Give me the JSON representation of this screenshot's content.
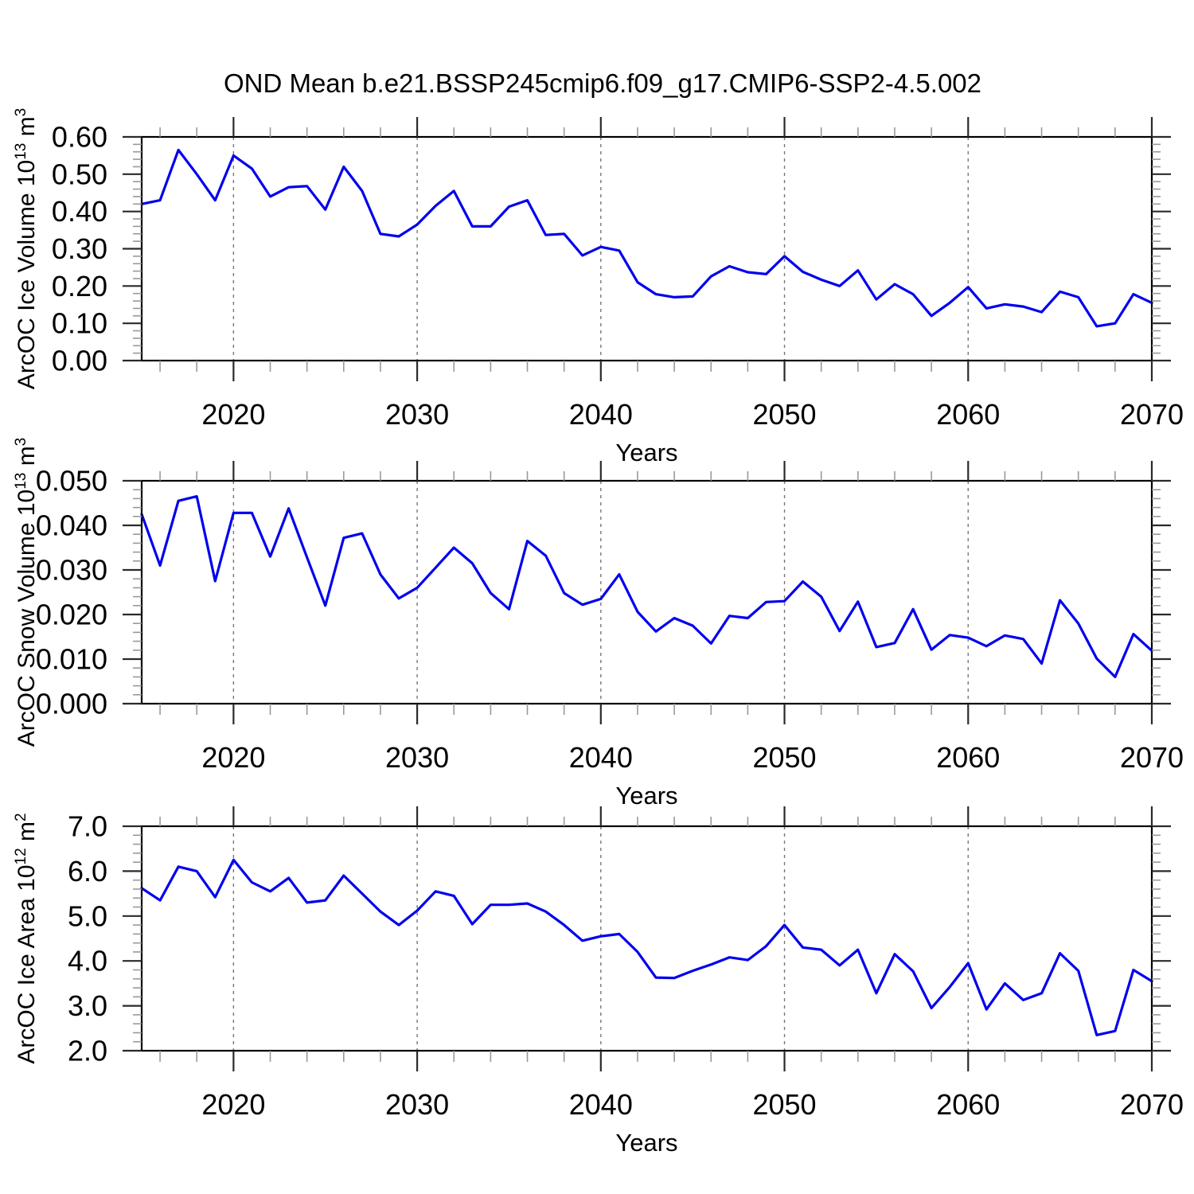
{
  "title": "OND Mean b.e21.BSSP245cmip6.f09_g17.CMIP6-SSP2-4.5.002",
  "colors": {
    "line": "#0000EE",
    "axis": "#000000",
    "major_tick": "#2a2a2a",
    "minor_tick": "#999999",
    "gridline": "#777777",
    "background": "#ffffff"
  },
  "years": [
    2015,
    2016,
    2017,
    2018,
    2019,
    2020,
    2021,
    2022,
    2023,
    2024,
    2025,
    2026,
    2027,
    2028,
    2029,
    2030,
    2031,
    2032,
    2033,
    2034,
    2035,
    2036,
    2037,
    2038,
    2039,
    2040,
    2041,
    2042,
    2043,
    2044,
    2045,
    2046,
    2047,
    2048,
    2049,
    2050,
    2051,
    2052,
    2053,
    2054,
    2055,
    2056,
    2057,
    2058,
    2059,
    2060,
    2061,
    2062,
    2063,
    2064,
    2065,
    2066,
    2067,
    2068,
    2069,
    2070
  ],
  "chart_data": [
    {
      "type": "line",
      "panel": "ice-volume",
      "ylabel_parts": {
        "prefix": "ArcOC Ice Volume 10",
        "exp": "13",
        "unit": " m",
        "unit_exp": "3"
      },
      "xlabel": "Years",
      "xlim": [
        2015,
        2070
      ],
      "ylim": [
        0.0,
        0.6
      ],
      "y_major_step": 0.1,
      "y_minor_step": 0.02,
      "y_tick_labels": [
        "0.00",
        "0.10",
        "0.20",
        "0.30",
        "0.40",
        "0.50",
        "0.60"
      ],
      "x_major_values": [
        2020,
        2030,
        2040,
        2050,
        2060,
        2070
      ],
      "x_tick_labels": [
        "2020",
        "2030",
        "2040",
        "2050",
        "2060",
        "2070"
      ],
      "x_minor_step": 2,
      "gridline_years": [
        2020,
        2030,
        2040,
        2050,
        2060
      ],
      "values": [
        0.42,
        0.43,
        0.565,
        0.5,
        0.43,
        0.55,
        0.515,
        0.44,
        0.465,
        0.468,
        0.405,
        0.52,
        0.455,
        0.34,
        0.333,
        0.365,
        0.415,
        0.455,
        0.36,
        0.36,
        0.413,
        0.43,
        0.337,
        0.34,
        0.282,
        0.305,
        0.295,
        0.21,
        0.178,
        0.17,
        0.172,
        0.226,
        0.253,
        0.237,
        0.232,
        0.28,
        0.238,
        0.217,
        0.2,
        0.242,
        0.164,
        0.205,
        0.178,
        0.12,
        0.155,
        0.197,
        0.14,
        0.151,
        0.145,
        0.13,
        0.185,
        0.17,
        0.092,
        0.1,
        0.178,
        0.155
      ]
    },
    {
      "type": "line",
      "panel": "snow-volume",
      "ylabel_parts": {
        "prefix": "ArcOC Snow Volume 10",
        "exp": "13",
        "unit": " m",
        "unit_exp": "3"
      },
      "xlabel": "Years",
      "xlim": [
        2015,
        2070
      ],
      "ylim": [
        0.0,
        0.05
      ],
      "y_major_step": 0.01,
      "y_minor_step": 0.002,
      "y_tick_labels": [
        "0.000",
        "0.010",
        "0.020",
        "0.030",
        "0.040",
        "0.050"
      ],
      "x_major_values": [
        2020,
        2030,
        2040,
        2050,
        2060,
        2070
      ],
      "x_tick_labels": [
        "2020",
        "2030",
        "2040",
        "2050",
        "2060",
        "2070"
      ],
      "x_minor_step": 2,
      "gridline_years": [
        2020,
        2030,
        2040,
        2050,
        2060
      ],
      "values": [
        0.0425,
        0.031,
        0.0455,
        0.0465,
        0.0275,
        0.0428,
        0.0428,
        0.033,
        0.0438,
        0.0328,
        0.022,
        0.0372,
        0.0382,
        0.029,
        0.0236,
        0.026,
        0.0305,
        0.035,
        0.0315,
        0.0248,
        0.0212,
        0.0365,
        0.0332,
        0.0248,
        0.0222,
        0.0235,
        0.029,
        0.0206,
        0.0162,
        0.0192,
        0.0175,
        0.0135,
        0.0197,
        0.0192,
        0.0228,
        0.023,
        0.0274,
        0.024,
        0.0163,
        0.0229,
        0.0127,
        0.0136,
        0.0212,
        0.0121,
        0.0154,
        0.0148,
        0.0129,
        0.0153,
        0.0145,
        0.009,
        0.0232,
        0.018,
        0.0101,
        0.006,
        0.0156,
        0.0119
      ]
    },
    {
      "type": "line",
      "panel": "ice-area",
      "ylabel_parts": {
        "prefix": "ArcOC Ice Area 10",
        "exp": "12",
        "unit": " m",
        "unit_exp": "2"
      },
      "xlabel": "Years",
      "xlim": [
        2015,
        2070
      ],
      "ylim": [
        2.0,
        7.0
      ],
      "y_major_step": 1.0,
      "y_minor_step": 0.2,
      "y_tick_labels": [
        "2.0",
        "3.0",
        "4.0",
        "5.0",
        "6.0",
        "7.0"
      ],
      "x_major_values": [
        2020,
        2030,
        2040,
        2050,
        2060,
        2070
      ],
      "x_tick_labels": [
        "2020",
        "2030",
        "2040",
        "2050",
        "2060",
        "2070"
      ],
      "x_minor_step": 2,
      "gridline_years": [
        2020,
        2030,
        2040,
        2050,
        2060
      ],
      "values": [
        5.62,
        5.35,
        6.1,
        6.0,
        5.42,
        6.25,
        5.75,
        5.55,
        5.85,
        5.3,
        5.35,
        5.9,
        5.5,
        5.1,
        4.8,
        5.12,
        5.55,
        5.45,
        4.82,
        5.25,
        5.25,
        5.28,
        5.1,
        4.8,
        4.45,
        4.55,
        4.6,
        4.2,
        3.63,
        3.62,
        3.78,
        3.92,
        4.08,
        4.02,
        4.33,
        4.8,
        4.3,
        4.25,
        3.9,
        4.25,
        3.28,
        4.15,
        3.77,
        2.95,
        3.42,
        3.95,
        2.92,
        3.5,
        3.13,
        3.28,
        4.17,
        3.78,
        2.35,
        2.44,
        3.8,
        3.55
      ]
    }
  ]
}
